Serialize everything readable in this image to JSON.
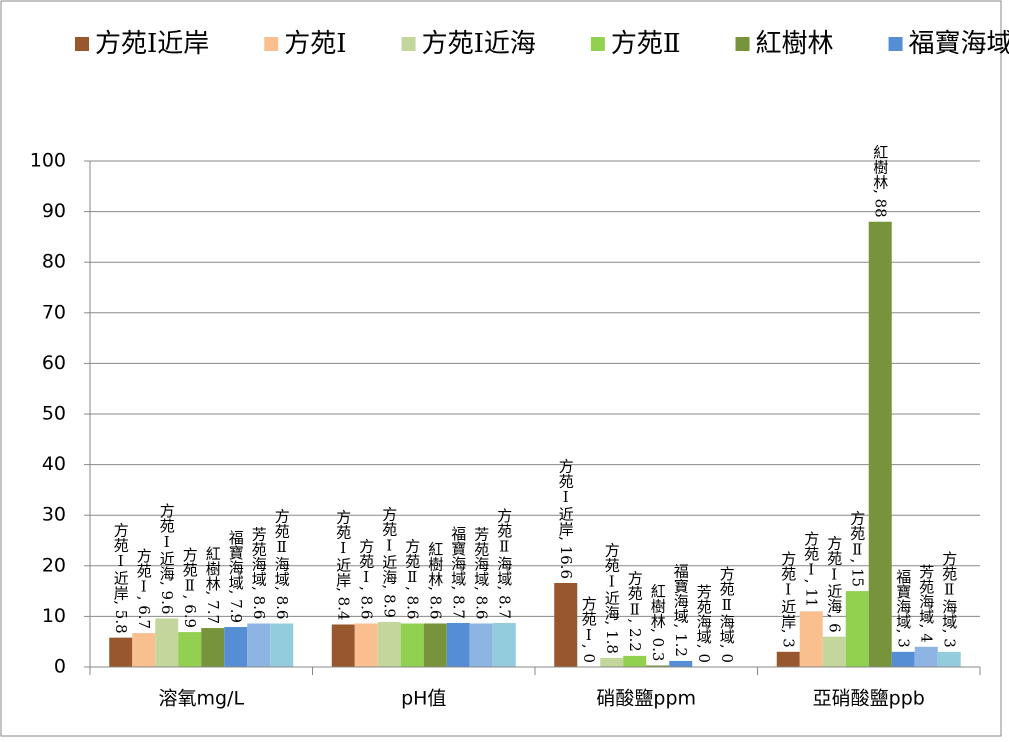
{
  "chart_data": {
    "type": "bar",
    "categories": [
      "溶氧mg/L",
      "pH值",
      "硝酸鹽ppm",
      "亞硝酸鹽ppb"
    ],
    "ylim": [
      0,
      100
    ],
    "yticks": [
      0,
      10,
      20,
      30,
      40,
      50,
      60,
      70,
      80,
      90,
      100
    ],
    "grid": true,
    "series": [
      {
        "name": "方苑Ⅰ近岸",
        "color": "#98572c",
        "values": [
          5.8,
          8.4,
          16.6,
          3
        ],
        "value_labels": [
          "方苑Ⅰ近岸, 5.8",
          "方苑Ⅰ近岸, 8.4",
          "方苑Ⅰ近岸, 16.6",
          "方苑Ⅰ近岸, 3"
        ]
      },
      {
        "name": "方苑Ⅰ",
        "color": "#f9bf8f",
        "values": [
          6.7,
          8.6,
          0,
          11
        ],
        "value_labels": [
          "方苑Ⅰ, 6.7",
          "方苑Ⅰ, 8.6",
          "方苑Ⅰ, 0",
          "方苑Ⅰ, 11"
        ]
      },
      {
        "name": "方苑Ⅰ近海",
        "color": "#c3d69b",
        "values": [
          9.6,
          8.9,
          1.8,
          6
        ],
        "value_labels": [
          "方苑Ⅰ近海, 9.6",
          "方苑Ⅰ近海, 8.9",
          "方苑Ⅰ近海, 1.8",
          "方苑Ⅰ近海, 6"
        ]
      },
      {
        "name": "方苑Ⅱ",
        "color": "#92d050",
        "values": [
          6.9,
          8.6,
          2.2,
          15
        ],
        "value_labels": [
          "方苑Ⅱ, 6.9",
          "方苑Ⅱ, 8.6",
          "方苑Ⅱ, 2.2",
          "方苑Ⅱ, 15"
        ]
      },
      {
        "name": "紅樹林",
        "color": "#77933c",
        "values": [
          7.7,
          8.6,
          0.3,
          88
        ],
        "value_labels": [
          "紅樹林, 7.7",
          "紅樹林, 8.6",
          "紅樹林, 0.3",
          "紅樹林, 88"
        ]
      },
      {
        "name": "福寶海域",
        "color": "#558ed5",
        "values": [
          7.9,
          8.7,
          1.2,
          3
        ],
        "value_labels": [
          "福寶海域, 7.9",
          "福寶海域, 8.7",
          "福寶海域, 1.2",
          "福寶海域, 3"
        ]
      },
      {
        "name": "芳苑海域",
        "color": "#8eb4e3",
        "values": [
          8.6,
          8.6,
          0,
          4
        ],
        "value_labels": [
          "芳苑海域, 8.6",
          "芳苑海域, 8.6",
          "芳苑海域, 0",
          "芳苑海域, 4"
        ]
      },
      {
        "name": "方苑Ⅱ海域",
        "color": "#93cddd",
        "values": [
          8.6,
          8.7,
          0,
          3
        ],
        "value_labels": [
          "方苑Ⅱ海域, 8.6",
          "方苑Ⅱ海域, 8.7",
          "方苑Ⅱ海域, 0",
          "方苑Ⅱ海域, 3"
        ]
      }
    ]
  }
}
